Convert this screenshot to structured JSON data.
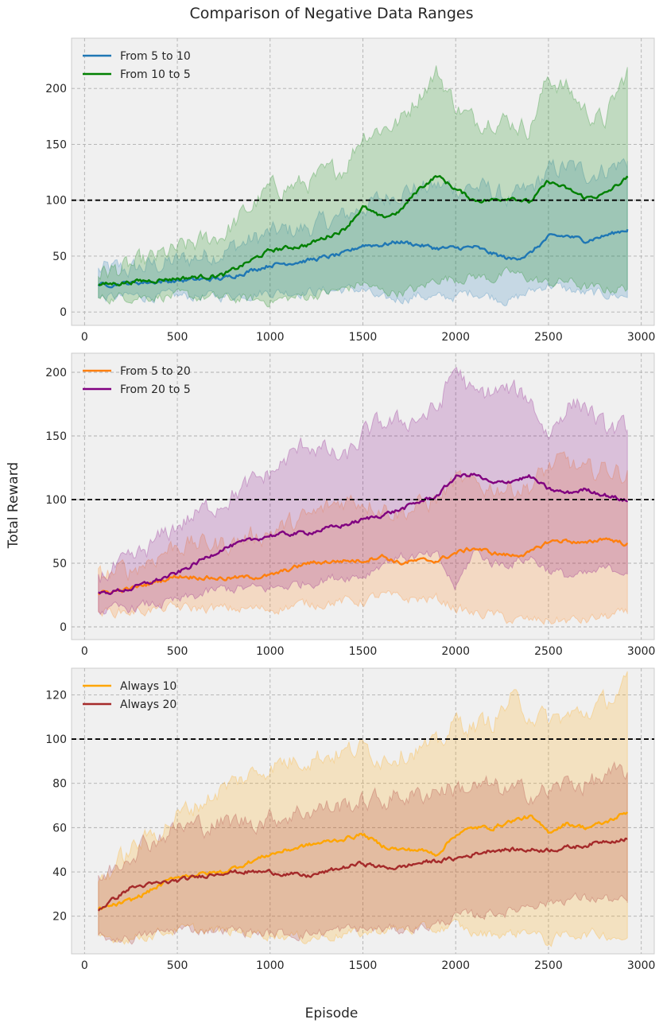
{
  "figure": {
    "title": "Comparison of Negative Data Ranges",
    "shared_xlabel": "Episode",
    "shared_ylabel": "Total Reward"
  },
  "chart_data": [
    {
      "type": "line",
      "title": "",
      "xlabel": "Episode",
      "ylabel": "Total Reward",
      "xlim": [
        -70,
        3070
      ],
      "ylim": [
        -12,
        245
      ],
      "xticks": [
        0,
        500,
        1000,
        1500,
        2000,
        2500,
        3000
      ],
      "yticks": [
        0,
        50,
        100,
        150,
        200
      ],
      "grid": true,
      "legend": "top-left",
      "reference_line": {
        "y": 100,
        "style": "dashed",
        "color": "#000000"
      },
      "x": [
        75,
        250,
        500,
        750,
        1000,
        1200,
        1400,
        1500,
        1600,
        1700,
        1800,
        1900,
        2000,
        2100,
        2200,
        2300,
        2400,
        2500,
        2600,
        2700,
        2800,
        2925
      ],
      "series": [
        {
          "name": "From 5 to 10",
          "color": "#1f77b4",
          "values": [
            24,
            26,
            28,
            30,
            42,
            46,
            52,
            60,
            60,
            63,
            60,
            57,
            57,
            58,
            52,
            47,
            52,
            67,
            68,
            64,
            68,
            74
          ],
          "upper": [
            37,
            38,
            45,
            55,
            70,
            75,
            85,
            95,
            100,
            110,
            110,
            112,
            112,
            112,
            108,
            100,
            108,
            125,
            130,
            124,
            128,
            135
          ],
          "lower": [
            12,
            14,
            14,
            14,
            18,
            18,
            20,
            20,
            10,
            12,
            15,
            12,
            14,
            18,
            14,
            10,
            18,
            25,
            20,
            16,
            16,
            14
          ]
        },
        {
          "name": "From 10 to 5",
          "color": "#008000",
          "values": [
            24,
            27,
            30,
            33,
            55,
            60,
            74,
            94,
            84,
            90,
            110,
            122,
            110,
            100,
            100,
            103,
            98,
            117,
            110,
            102,
            105,
            120
          ],
          "upper": [
            35,
            40,
            55,
            70,
            110,
            115,
            130,
            160,
            165,
            170,
            195,
            215,
            185,
            170,
            175,
            170,
            165,
            210,
            200,
            180,
            170,
            215
          ],
          "lower": [
            12,
            14,
            14,
            12,
            10,
            14,
            20,
            26,
            18,
            18,
            20,
            30,
            30,
            32,
            30,
            35,
            30,
            25,
            28,
            22,
            20,
            22
          ]
        }
      ]
    },
    {
      "type": "line",
      "title": "",
      "xlabel": "Episode",
      "ylabel": "Total Reward",
      "xlim": [
        -70,
        3070
      ],
      "ylim": [
        -10,
        215
      ],
      "xticks": [
        0,
        500,
        1000,
        1500,
        2000,
        2500,
        3000
      ],
      "yticks": [
        0,
        50,
        100,
        150,
        200
      ],
      "grid": true,
      "legend": "top-left",
      "reference_line": {
        "y": 100,
        "style": "dashed",
        "color": "#000000"
      },
      "x": [
        75,
        250,
        500,
        750,
        1000,
        1200,
        1400,
        1500,
        1600,
        1700,
        1800,
        1900,
        2000,
        2100,
        2200,
        2300,
        2400,
        2500,
        2600,
        2700,
        2800,
        2925
      ],
      "series": [
        {
          "name": "From 5 to 20",
          "color": "#ff7f0e",
          "values": [
            26,
            30,
            40,
            38,
            40,
            50,
            52,
            52,
            56,
            50,
            52,
            52,
            58,
            62,
            58,
            56,
            58,
            67,
            68,
            65,
            70,
            65
          ],
          "upper": [
            40,
            45,
            65,
            65,
            75,
            85,
            100,
            100,
            95,
            90,
            95,
            100,
            115,
            110,
            110,
            110,
            110,
            125,
            130,
            120,
            125,
            120
          ],
          "lower": [
            12,
            12,
            15,
            14,
            14,
            18,
            20,
            20,
            25,
            22,
            22,
            22,
            15,
            10,
            10,
            5,
            5,
            5,
            5,
            5,
            8,
            10
          ]
        },
        {
          "name": "From 20 to 5",
          "color": "#800080",
          "values": [
            26,
            30,
            42,
            62,
            72,
            74,
            80,
            84,
            88,
            92,
            98,
            103,
            118,
            120,
            112,
            115,
            118,
            108,
            105,
            108,
            104,
            99
          ],
          "upper": [
            40,
            50,
            80,
            100,
            120,
            145,
            130,
            150,
            160,
            160,
            165,
            170,
            205,
            180,
            185,
            185,
            180,
            150,
            175,
            175,
            155,
            155
          ],
          "lower": [
            12,
            15,
            20,
            30,
            30,
            35,
            40,
            40,
            50,
            55,
            55,
            55,
            30,
            60,
            50,
            50,
            55,
            45,
            40,
            40,
            45,
            45
          ]
        }
      ]
    },
    {
      "type": "line",
      "title": "",
      "xlabel": "Episode",
      "ylabel": "Total Reward",
      "xlim": [
        -70,
        3070
      ],
      "ylim": [
        3,
        132
      ],
      "xticks": [
        0,
        500,
        1000,
        1500,
        2000,
        2500,
        3000
      ],
      "yticks": [
        20,
        40,
        60,
        80,
        100,
        120
      ],
      "grid": true,
      "legend": "top-left",
      "reference_line": {
        "y": 100,
        "style": "dashed",
        "color": "#000000"
      },
      "x": [
        75,
        250,
        500,
        750,
        1000,
        1200,
        1400,
        1500,
        1600,
        1700,
        1800,
        1900,
        2000,
        2100,
        2200,
        2300,
        2400,
        2500,
        2600,
        2700,
        2800,
        2925
      ],
      "series": [
        {
          "name": "Always 10",
          "color": "#ffa500",
          "values": [
            23,
            27,
            38,
            40,
            48,
            52,
            55,
            57,
            52,
            50,
            50,
            48,
            57,
            60,
            60,
            63,
            65,
            58,
            62,
            60,
            62,
            67
          ],
          "upper": [
            35,
            50,
            65,
            78,
            88,
            92,
            94,
            96,
            92,
            94,
            96,
            96,
            108,
            106,
            108,
            118,
            112,
            108,
            110,
            112,
            116,
            125
          ],
          "lower": [
            10,
            10,
            14,
            13,
            12,
            10,
            12,
            12,
            14,
            14,
            14,
            14,
            16,
            12,
            12,
            12,
            14,
            8,
            12,
            12,
            12,
            10
          ]
        },
        {
          "name": "Always 20",
          "color": "#a52a2a",
          "values": [
            23,
            33,
            36,
            40,
            40,
            38,
            42,
            44,
            42,
            42,
            44,
            45,
            46,
            48,
            50,
            50,
            50,
            50,
            51,
            52,
            54,
            55
          ],
          "upper": [
            35,
            50,
            60,
            62,
            64,
            68,
            70,
            72,
            72,
            75,
            74,
            78,
            78,
            78,
            78,
            76,
            76,
            76,
            80,
            80,
            82,
            85
          ],
          "lower": [
            10,
            10,
            14,
            14,
            12,
            12,
            14,
            14,
            14,
            14,
            15,
            16,
            20,
            20,
            22,
            22,
            26,
            26,
            28,
            28,
            28,
            26
          ]
        }
      ]
    }
  ]
}
